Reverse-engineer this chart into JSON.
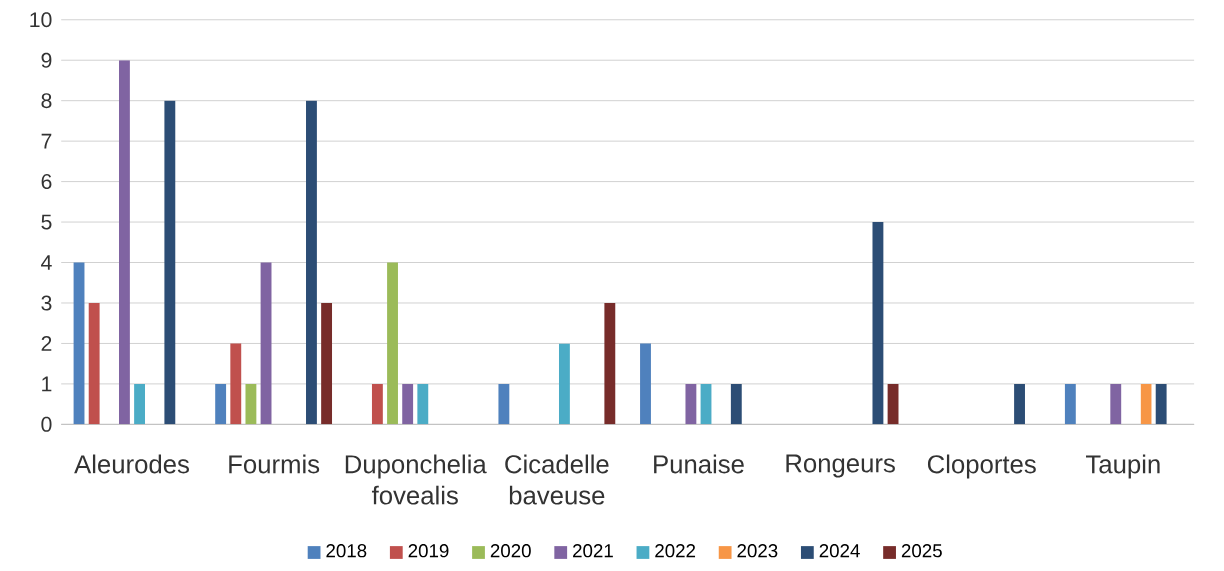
{
  "chart_data": {
    "type": "bar",
    "categories": [
      "Aleurodes",
      "Fourmis",
      "Duponchelia fovealis",
      "Cicadelle baveuse",
      "Punaise",
      "Rongeurs",
      "Cloportes",
      "Taupin"
    ],
    "series": [
      {
        "name": "2018",
        "color": "#4f81bd",
        "values": [
          4,
          1,
          null,
          1,
          2,
          null,
          null,
          1
        ]
      },
      {
        "name": "2019",
        "color": "#c0504d",
        "values": [
          3,
          2,
          1,
          null,
          null,
          null,
          null,
          null
        ]
      },
      {
        "name": "2020",
        "color": "#9bbb59",
        "values": [
          null,
          1,
          4,
          null,
          null,
          null,
          null,
          null
        ]
      },
      {
        "name": "2021",
        "color": "#8064a2",
        "values": [
          9,
          4,
          1,
          null,
          1,
          null,
          null,
          1
        ]
      },
      {
        "name": "2022",
        "color": "#4bacc6",
        "values": [
          1,
          null,
          1,
          2,
          1,
          null,
          null,
          null
        ]
      },
      {
        "name": "2023",
        "color": "#f79646",
        "values": [
          null,
          null,
          null,
          null,
          null,
          null,
          null,
          1
        ]
      },
      {
        "name": "2024",
        "color": "#2c4d75",
        "values": [
          8,
          8,
          null,
          null,
          1,
          5,
          1,
          1
        ]
      },
      {
        "name": "2025",
        "color": "#772c2a",
        "values": [
          null,
          3,
          null,
          3,
          null,
          1,
          null,
          null
        ]
      }
    ],
    "ylim": [
      0,
      10
    ],
    "yticks": [
      0,
      1,
      2,
      3,
      4,
      5,
      6,
      7,
      8,
      9,
      10
    ],
    "grid": "y",
    "legend": "bottom"
  }
}
